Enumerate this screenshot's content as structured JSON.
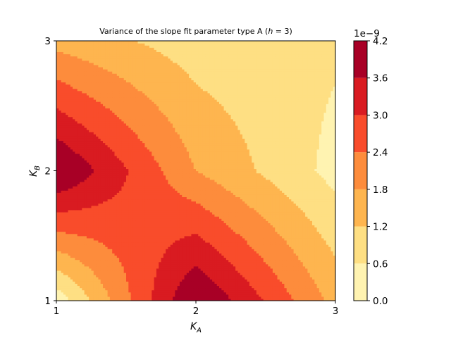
{
  "chart_data": {
    "type": "heatmap",
    "subtype": "filled-contour",
    "title": "Variance of the slope fit parameter type A (h = 3)",
    "title_main": "Variance of the slope fit parameter type A (",
    "title_var": "h",
    "title_tail": " = 3)",
    "xlabel_main": "K",
    "xlabel_sub": "A",
    "ylabel_main": "K",
    "ylabel_sub": "B",
    "xlim": [
      1,
      3
    ],
    "ylim": [
      1,
      3
    ],
    "x_ticks": [
      "1",
      "2",
      "3"
    ],
    "y_ticks": [
      "1",
      "2",
      "3"
    ],
    "x": [
      1,
      2,
      3
    ],
    "y": [
      1,
      2,
      3
    ],
    "z": [
      [
        2e-10,
        4.3e-09,
        1.6e-09
      ],
      [
        4.3e-09,
        1.8e-09,
        4e-10
      ],
      [
        1.6e-09,
        9e-10,
        7e-10
      ]
    ],
    "z_note": "z[i][j] = value at K_B = y[i], K_A = x[j] (estimated)",
    "levels": [
      0.0,
      6e-10,
      1.2e-09,
      1.8e-09,
      2.4e-09,
      3e-09,
      3.6e-09,
      4.2e-09
    ],
    "colors": [
      "#fff3b1",
      "#fedf83",
      "#feb54f",
      "#fd8c3c",
      "#f94c2b",
      "#d91b21",
      "#a80026"
    ],
    "colorbar": {
      "ticks": [
        "0.0",
        "0.6",
        "1.2",
        "1.8",
        "2.4",
        "3.0",
        "3.6",
        "4.2"
      ],
      "offset_label": "1e−9",
      "range": [
        0.0,
        4.2e-09
      ]
    },
    "colormap": "YlOrRd",
    "grid": false
  }
}
